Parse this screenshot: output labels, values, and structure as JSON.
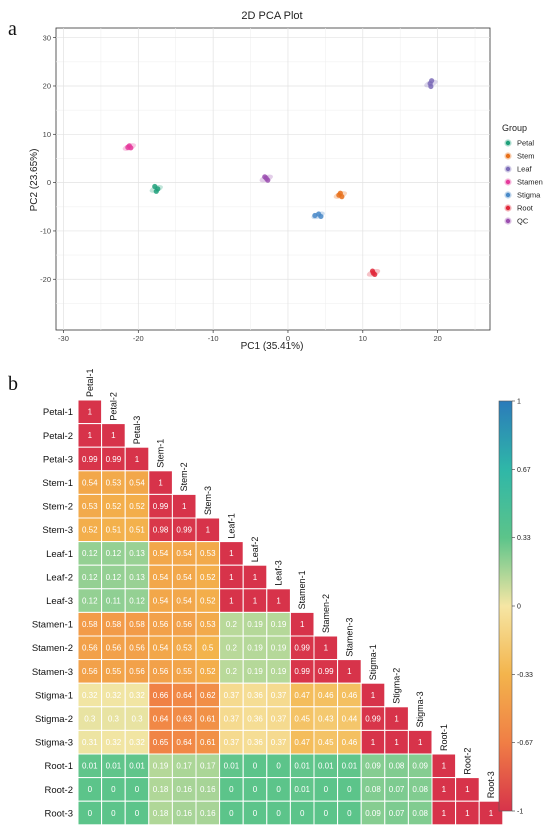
{
  "panels": {
    "a": "a",
    "b": "b"
  },
  "chart_data": [
    {
      "type": "scatter",
      "title": "2D PCA Plot",
      "xlabel": "PC1 (35.41%)",
      "ylabel": "PC2 (23.65%)",
      "xlim": [
        -31,
        27
      ],
      "ylim": [
        -30.5,
        32
      ],
      "xticks": [
        -30,
        -20,
        -10,
        0,
        10,
        20
      ],
      "yticks": [
        30,
        20,
        10,
        0,
        -10,
        -20
      ],
      "grid": true,
      "legend": {
        "title": "Group",
        "position": "right"
      },
      "series": [
        {
          "name": "Petal",
          "color": "#1fa07a",
          "points": [
            [
              -17.8,
              -0.8
            ],
            [
              -17.4,
              -1.3
            ],
            [
              -17.6,
              -1.8
            ]
          ]
        },
        {
          "name": "Stem",
          "color": "#e8701a",
          "points": [
            [
              7.0,
              -2.2
            ],
            [
              6.8,
              -2.6
            ],
            [
              7.2,
              -2.9
            ]
          ]
        },
        {
          "name": "Leaf",
          "color": "#7c6cb8",
          "points": [
            [
              19.0,
              20.5
            ],
            [
              19.2,
              21.1
            ],
            [
              19.1,
              19.9
            ]
          ]
        },
        {
          "name": "Stamen",
          "color": "#e53a9c",
          "points": [
            [
              -21.2,
              7.6
            ],
            [
              -21.0,
              7.2
            ],
            [
              -21.4,
              7.3
            ]
          ]
        },
        {
          "name": "Stigma",
          "color": "#4a8ac8",
          "points": [
            [
              3.6,
              -6.8
            ],
            [
              4.1,
              -6.5
            ],
            [
              4.4,
              -7.0
            ]
          ]
        },
        {
          "name": "Root",
          "color": "#e0283a",
          "points": [
            [
              11.3,
              -18.3
            ],
            [
              11.6,
              -19.0
            ],
            [
              11.4,
              -18.7
            ]
          ]
        },
        {
          "name": "QC",
          "color": "#9b4fb0",
          "points": [
            [
              -2.9,
              0.9
            ],
            [
              -2.7,
              0.5
            ],
            [
              -3.1,
              1.2
            ]
          ]
        }
      ]
    },
    {
      "type": "heatmap",
      "labels": [
        "Petal-1",
        "Petal-2",
        "Petal-3",
        "Stem-1",
        "Stem-2",
        "Stem-3",
        "Leaf-1",
        "Leaf-2",
        "Leaf-3",
        "Stamen-1",
        "Stamen-2",
        "Stamen-3",
        "Stigma-1",
        "Stigma-2",
        "Stigma-3",
        "Root-1",
        "Root-2",
        "Root-3"
      ],
      "matrix": [
        [
          "1"
        ],
        [
          "1",
          "1"
        ],
        [
          "0.99",
          "0.99",
          "1"
        ],
        [
          "0.54",
          "0.53",
          "0.54",
          "1"
        ],
        [
          "0.53",
          "0.52",
          "0.52",
          "0.99",
          "1"
        ],
        [
          "0.52",
          "0.51",
          "0.51",
          "0.98",
          "0.99",
          "1"
        ],
        [
          "0.12",
          "0.12",
          "0.13",
          "0.54",
          "0.54",
          "0.53",
          "1"
        ],
        [
          "0.12",
          "0.12",
          "0.13",
          "0.54",
          "0.54",
          "0.52",
          "1",
          "1"
        ],
        [
          "0.12",
          "0.11",
          "0.12",
          "0.54",
          "0.54",
          "0.52",
          "1",
          "1",
          "1"
        ],
        [
          "0.58",
          "0.58",
          "0.58",
          "0.56",
          "0.56",
          "0.53",
          "0.2",
          "0.19",
          "0.19",
          "1"
        ],
        [
          "0.56",
          "0.56",
          "0.56",
          "0.54",
          "0.53",
          "0.5",
          "0.2",
          "0.19",
          "0.19",
          "0.99",
          "1"
        ],
        [
          "0.56",
          "0.55",
          "0.56",
          "0.56",
          "0.55",
          "0.52",
          "0.2",
          "0.19",
          "0.19",
          "0.99",
          "0.99",
          "1"
        ],
        [
          "0.32",
          "0.32",
          "0.32",
          "0.66",
          "0.64",
          "0.62",
          "0.37",
          "0.36",
          "0.37",
          "0.47",
          "0.46",
          "0.46",
          "1"
        ],
        [
          "0.3",
          "0.3",
          "0.3",
          "0.64",
          "0.63",
          "0.61",
          "0.37",
          "0.36",
          "0.37",
          "0.45",
          "0.43",
          "0.44",
          "0.99",
          "1"
        ],
        [
          "0.31",
          "0.32",
          "0.32",
          "0.65",
          "0.64",
          "0.61",
          "0.37",
          "0.36",
          "0.37",
          "0.47",
          "0.45",
          "0.46",
          "1",
          "1",
          "1"
        ],
        [
          "0.01",
          "0.01",
          "0.01",
          "0.19",
          "0.17",
          "0.17",
          "0.01",
          "0",
          "0",
          "0.01",
          "0.01",
          "0.01",
          "0.09",
          "0.08",
          "0.09",
          "1"
        ],
        [
          "0",
          "0",
          "0",
          "0.18",
          "0.16",
          "0.16",
          "0",
          "0",
          "0",
          "0.01",
          "0",
          "0",
          "0.08",
          "0.07",
          "0.08",
          "1",
          "1"
        ],
        [
          "0",
          "0",
          "0",
          "0.18",
          "0.16",
          "0.16",
          "0",
          "0",
          "0",
          "0",
          "0",
          "0",
          "0.09",
          "0.07",
          "0.08",
          "1",
          "1",
          "1"
        ]
      ],
      "colorbar": {
        "ticks": [
          "1",
          "0.67",
          "0.33",
          "0",
          "-0.33",
          "-0.67",
          "-1"
        ],
        "colors": [
          "#2b7bba",
          "#2fb7a8",
          "#5cc48a",
          "#f6e6a4",
          "#f3b44c",
          "#f07e45",
          "#d7334a"
        ]
      }
    }
  ]
}
